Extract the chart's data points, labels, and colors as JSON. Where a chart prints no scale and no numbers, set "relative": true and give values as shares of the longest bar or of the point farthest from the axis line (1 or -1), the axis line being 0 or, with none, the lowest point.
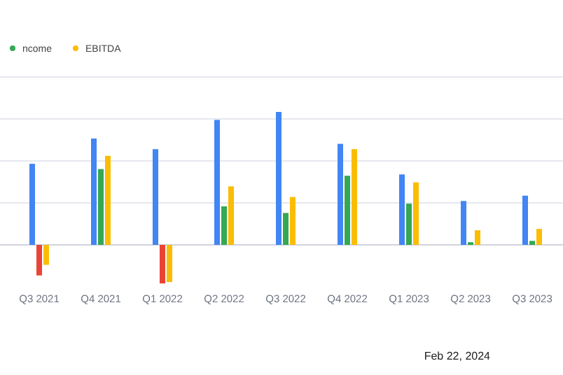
{
  "chart_data": {
    "type": "bar",
    "relative": true,
    "categories": [
      "Q3 2021",
      "Q4 2021",
      "Q1 2022",
      "Q2 2022",
      "Q3 2022",
      "Q4 2022",
      "Q1 2023",
      "Q2 2023",
      "Q3 2023"
    ],
    "series": [
      {
        "color": "#4285f4",
        "values": [
          0.61,
          0.8,
          0.72,
          0.94,
          1,
          0.76,
          0.53,
          0.33,
          0.37
        ]
      },
      {
        "name": "ncome",
        "color": "#34a853",
        "colors": [
          "#ea4335",
          "#34a853",
          "#ea4335",
          "#34a853",
          "#34a853",
          "#34a853",
          "#34a853",
          "#34a853",
          "#34a853"
        ],
        "values": [
          -0.23,
          0.57,
          -0.29,
          0.29,
          0.24,
          0.52,
          0.31,
          0.02,
          0.03
        ]
      },
      {
        "name": "EBITDA",
        "color": "#fbbc04",
        "values": [
          -0.15,
          0.67,
          -0.28,
          0.44,
          0.36,
          0.72,
          0.47,
          0.11,
          0.12
        ]
      }
    ],
    "grid": "y",
    "legend": "top left",
    "annotations": [
      "Feb 22, 2024"
    ]
  }
}
